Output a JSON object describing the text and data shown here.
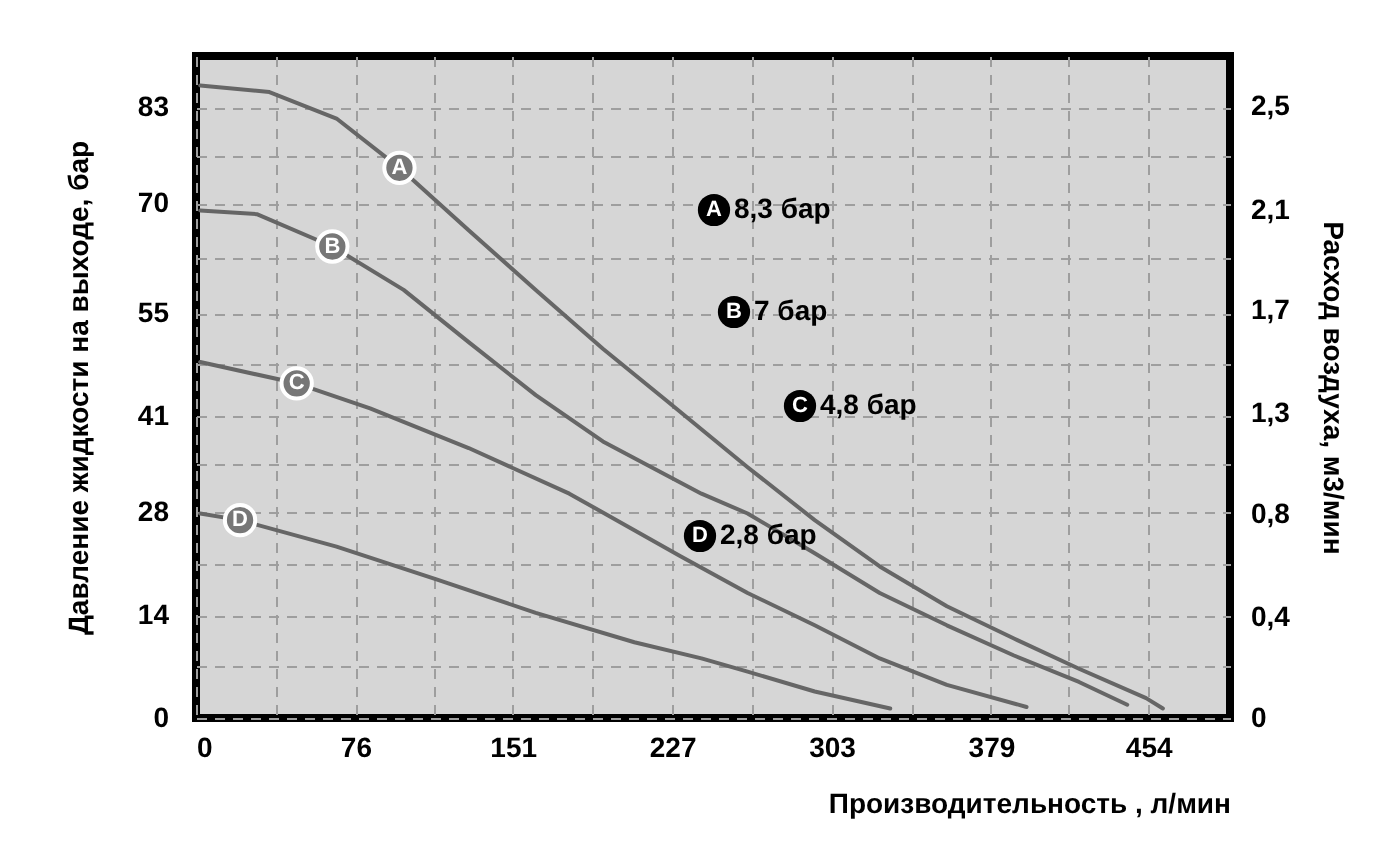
{
  "chart_data": {
    "type": "line",
    "xlabel": "Производительность , л/мин",
    "ylabel": "Давление жидкости на выходе, бар",
    "y2label": "Расход воздуха, м3/мин",
    "xlim": [
      0,
      493
    ],
    "ylim": [
      0,
      90
    ],
    "y2lim": [
      0,
      2.76
    ],
    "xticks": [
      0,
      {
        "value": 38,
        "label": null
      },
      76,
      {
        "value": 113,
        "label": null
      },
      151,
      {
        "value": 189,
        "label": null
      },
      227,
      {
        "value": 265,
        "label": null
      },
      303,
      {
        "value": 341,
        "label": null
      },
      379,
      {
        "value": 416,
        "label": null
      },
      454
    ],
    "yticks": [
      0,
      {
        "value": 7,
        "label": null
      },
      14,
      {
        "value": 21,
        "label": null
      },
      28,
      {
        "value": 34.5,
        "label": null
      },
      41,
      {
        "value": 48,
        "label": null
      },
      55,
      {
        "value": 62.5,
        "label": null
      },
      70,
      {
        "value": 76.5,
        "label": null
      },
      83
    ],
    "y2ticks": [
      0,
      {
        "value": 0.42,
        "label": "0,4"
      },
      {
        "value": 0.85,
        "label": "0,8"
      },
      {
        "value": 1.27,
        "label": "1,3"
      },
      {
        "value": 1.7,
        "label": "1,7"
      },
      {
        "value": 2.12,
        "label": "2,1"
      },
      {
        "value": 2.55,
        "label": "2,5"
      }
    ],
    "grid": true,
    "line_style": "solid",
    "series": [
      {
        "name": "A",
        "color": "#666666",
        "x": [
          2,
          35,
          67,
          97,
          130,
          162,
          194,
          225,
          263,
          295,
          326,
          358,
          390,
          421,
          453,
          461
        ],
        "values": [
          86,
          85.1,
          81.5,
          74.8,
          66.3,
          58.2,
          50.2,
          43,
          34.1,
          26.9,
          20.6,
          15.2,
          10.8,
          6.7,
          2.7,
          1.3
        ]
      },
      {
        "name": "B",
        "color": "#666666",
        "x": [
          2,
          29,
          65,
          99,
          130,
          162,
          194,
          241,
          263,
          295,
          326,
          358,
          390,
          421,
          444
        ],
        "values": [
          69,
          68.5,
          64.1,
          58.2,
          51.1,
          43.9,
          37.6,
          30.5,
          27.8,
          22.4,
          17,
          12.6,
          8.5,
          4.9,
          1.8
        ]
      },
      {
        "name": "C",
        "color": "#666666",
        "x": [
          2,
          48,
          83,
          130,
          178,
          231,
          263,
          295,
          326,
          358,
          396
        ],
        "values": [
          48.4,
          45.5,
          42.1,
          36.7,
          30.5,
          22,
          17,
          12.6,
          8.1,
          4.5,
          1.5
        ]
      },
      {
        "name": "D",
        "color": "#666666",
        "x": [
          2,
          21,
          67,
          115,
          162,
          209,
          241,
          263,
          295,
          331
        ],
        "values": [
          27.8,
          26.9,
          23.3,
          18.8,
          14.3,
          10.3,
          8.1,
          6.3,
          3.6,
          1.3
        ]
      }
    ],
    "annotations": [
      "8,3 бар",
      "7 бар",
      "4,8 бар",
      "2,8 бар"
    ]
  }
}
